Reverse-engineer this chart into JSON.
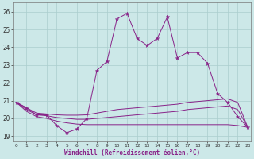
{
  "xlabel": "Windchill (Refroidissement éolien,°C)",
  "background_color": "#cce8e8",
  "grid_color": "#aacece",
  "line_color": "#882288",
  "x_hours": [
    0,
    1,
    2,
    3,
    4,
    5,
    6,
    7,
    8,
    9,
    10,
    11,
    12,
    13,
    14,
    15,
    16,
    17,
    18,
    19,
    20,
    21,
    22,
    23
  ],
  "temp_line": [
    20.9,
    20.6,
    20.2,
    20.2,
    19.6,
    19.2,
    19.4,
    20.0,
    22.7,
    23.2,
    25.6,
    25.9,
    24.5,
    24.1,
    24.5,
    25.7,
    23.4,
    23.7,
    23.7,
    23.1,
    21.4,
    20.9,
    20.1,
    19.5
  ],
  "smooth_line1": [
    20.9,
    20.6,
    20.3,
    20.25,
    20.2,
    20.18,
    20.18,
    20.2,
    20.3,
    20.4,
    20.5,
    20.55,
    20.6,
    20.65,
    20.7,
    20.75,
    20.8,
    20.9,
    20.95,
    21.0,
    21.05,
    21.1,
    20.9,
    19.5
  ],
  "smooth_line2": [
    20.9,
    20.5,
    20.2,
    20.15,
    20.05,
    20.0,
    19.95,
    19.95,
    20.0,
    20.05,
    20.1,
    20.15,
    20.2,
    20.25,
    20.3,
    20.35,
    20.4,
    20.5,
    20.55,
    20.6,
    20.65,
    20.7,
    20.5,
    19.5
  ],
  "smooth_line3": [
    20.9,
    20.4,
    20.1,
    20.0,
    19.85,
    19.75,
    19.68,
    19.65,
    19.65,
    19.65,
    19.65,
    19.65,
    19.65,
    19.65,
    19.65,
    19.65,
    19.65,
    19.65,
    19.65,
    19.65,
    19.65,
    19.65,
    19.6,
    19.5
  ],
  "ylim": [
    18.75,
    26.5
  ],
  "yticks": [
    19,
    20,
    21,
    22,
    23,
    24,
    25,
    26
  ],
  "xticks": [
    0,
    1,
    2,
    3,
    4,
    5,
    6,
    7,
    8,
    9,
    10,
    11,
    12,
    13,
    14,
    15,
    16,
    17,
    18,
    19,
    20,
    21,
    22,
    23
  ]
}
